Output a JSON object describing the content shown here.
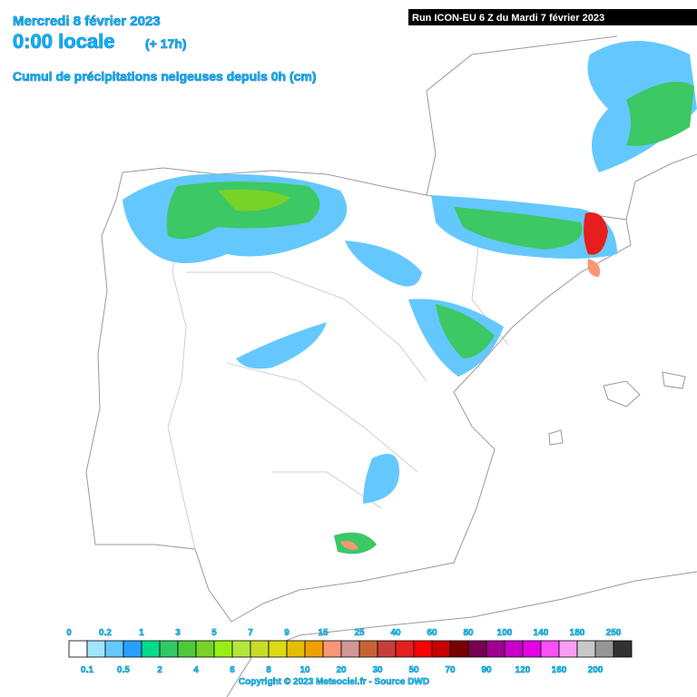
{
  "header": {
    "date": "Mercredi 8 février 2023",
    "time": "0:00 locale",
    "lead": "(+ 17h)",
    "subtitle": "Cumul de précipitations neigeuses depuis 0h (cm)"
  },
  "run": "Run ICON-EU 6 Z du Mardi 7 février 2023",
  "legend": {
    "thresholds": [
      0,
      0.1,
      0.2,
      0.5,
      1,
      2,
      3,
      4,
      5,
      6,
      7,
      8,
      9,
      10,
      15,
      20,
      25,
      30,
      40,
      50,
      60,
      70,
      80,
      90,
      100,
      120,
      140,
      160,
      180,
      200,
      250
    ],
    "colors": [
      "#ffffff",
      "#a0e6ff",
      "#64c8ff",
      "#28a0ff",
      "#00dc8c",
      "#32c864",
      "#50c83c",
      "#78d228",
      "#96f014",
      "#b4e63c",
      "#c8dc28",
      "#dcdc14",
      "#e6be00",
      "#f0a000",
      "#fa9678",
      "#d29696",
      "#c86432",
      "#c83c3c",
      "#e61e1e",
      "#fa0000",
      "#c80000",
      "#780000",
      "#780050",
      "#a0008c",
      "#c800c8",
      "#e600e6",
      "#fa50fa",
      "#fa9ef5",
      "#c8c8c8",
      "#969696",
      "#323232"
    ]
  },
  "copyright": "Copyright © 2023 Meteociel.fr - Source DWD"
}
